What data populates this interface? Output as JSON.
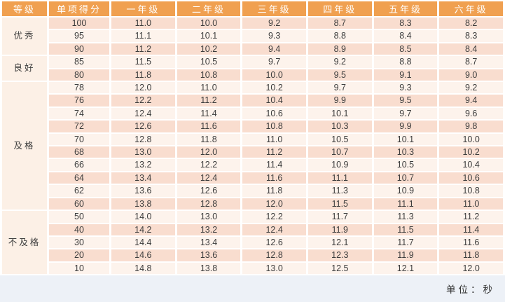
{
  "chart_data": {
    "type": "table",
    "unit_note": "单位：秒",
    "columns": [
      "等级",
      "单项得分",
      "一年级",
      "二年级",
      "三年级",
      "四年级",
      "五年级",
      "六年级"
    ],
    "groups": [
      {
        "grade": "优秀",
        "rows": [
          {
            "score": "100",
            "times": [
              "11.0",
              "10.0",
              "9.2",
              "8.7",
              "8.3",
              "8.2"
            ]
          },
          {
            "score": "95",
            "times": [
              "11.1",
              "10.1",
              "9.3",
              "8.8",
              "8.4",
              "8.3"
            ]
          },
          {
            "score": "90",
            "times": [
              "11.2",
              "10.2",
              "9.4",
              "8.9",
              "8.5",
              "8.4"
            ]
          }
        ]
      },
      {
        "grade": "良好",
        "rows": [
          {
            "score": "85",
            "times": [
              "11.5",
              "10.5",
              "9.7",
              "9.2",
              "8.8",
              "8.7"
            ]
          },
          {
            "score": "80",
            "times": [
              "11.8",
              "10.8",
              "10.0",
              "9.5",
              "9.1",
              "9.0"
            ]
          }
        ]
      },
      {
        "grade": "及格",
        "rows": [
          {
            "score": "78",
            "times": [
              "12.0",
              "11.0",
              "10.2",
              "9.7",
              "9.3",
              "9.2"
            ]
          },
          {
            "score": "76",
            "times": [
              "12.2",
              "11.2",
              "10.4",
              "9.9",
              "9.5",
              "9.4"
            ]
          },
          {
            "score": "74",
            "times": [
              "12.4",
              "11.4",
              "10.6",
              "10.1",
              "9.7",
              "9.6"
            ]
          },
          {
            "score": "72",
            "times": [
              "12.6",
              "11.6",
              "10.8",
              "10.3",
              "9.9",
              "9.8"
            ]
          },
          {
            "score": "70",
            "times": [
              "12.8",
              "11.8",
              "11.0",
              "10.5",
              "10.1",
              "10.0"
            ]
          },
          {
            "score": "68",
            "times": [
              "13.0",
              "12.0",
              "11.2",
              "10.7",
              "10.3",
              "10.2"
            ]
          },
          {
            "score": "66",
            "times": [
              "13.2",
              "12.2",
              "11.4",
              "10.9",
              "10.5",
              "10.4"
            ]
          },
          {
            "score": "64",
            "times": [
              "13.4",
              "12.4",
              "11.6",
              "11.1",
              "10.7",
              "10.6"
            ]
          },
          {
            "score": "62",
            "times": [
              "13.6",
              "12.6",
              "11.8",
              "11.3",
              "10.9",
              "10.8"
            ]
          },
          {
            "score": "60",
            "times": [
              "13.8",
              "12.8",
              "12.0",
              "11.5",
              "11.1",
              "11.0"
            ]
          }
        ]
      },
      {
        "grade": "不及格",
        "rows": [
          {
            "score": "50",
            "times": [
              "14.0",
              "13.0",
              "12.2",
              "11.7",
              "11.3",
              "11.2"
            ]
          },
          {
            "score": "40",
            "times": [
              "14.2",
              "13.2",
              "12.4",
              "11.9",
              "11.5",
              "11.4"
            ]
          },
          {
            "score": "30",
            "times": [
              "14.4",
              "13.4",
              "12.6",
              "12.1",
              "11.7",
              "11.6"
            ]
          },
          {
            "score": "20",
            "times": [
              "14.6",
              "13.6",
              "12.8",
              "12.3",
              "11.9",
              "11.8"
            ]
          },
          {
            "score": "10",
            "times": [
              "14.8",
              "13.8",
              "13.0",
              "12.5",
              "12.1",
              "12.0"
            ]
          }
        ]
      }
    ]
  },
  "colors": {
    "header_bg": "#f0a050",
    "header_text": "#ffffff",
    "row_pink": "#f9ddcf",
    "row_light": "#fdf3ec",
    "group_bg": "#fcf0e6",
    "grid_white": "#ffffff",
    "page_bg": "#edf1f7",
    "text_dark": "#3d3d3d"
  }
}
